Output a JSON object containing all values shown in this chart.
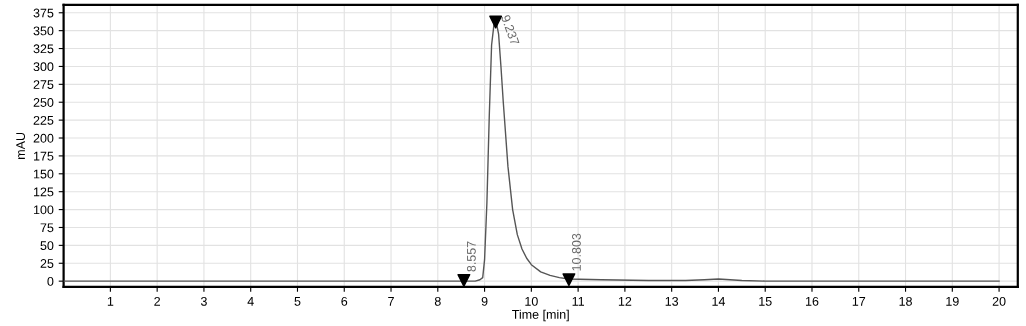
{
  "chart_data": {
    "type": "line",
    "xlabel": "Time [min]",
    "ylabel": "mAU",
    "xlim": [
      0,
      20.4
    ],
    "ylim": [
      -8,
      386
    ],
    "xticks": [
      1,
      2,
      3,
      4,
      5,
      6,
      7,
      8,
      9,
      10,
      11,
      12,
      13,
      14,
      15,
      16,
      17,
      18,
      19,
      20
    ],
    "yticks": [
      0,
      25,
      50,
      75,
      100,
      125,
      150,
      175,
      200,
      225,
      250,
      275,
      300,
      325,
      350,
      375
    ],
    "grid": true,
    "legend": false,
    "series": [
      {
        "color": "#555555",
        "marker": "none",
        "line_style": "solid",
        "x": [
          0,
          4,
          8.5,
          8.8,
          8.9,
          8.96,
          9.0,
          9.05,
          9.1,
          9.15,
          9.2,
          9.25,
          9.3,
          9.35,
          9.4,
          9.5,
          9.6,
          9.7,
          9.8,
          9.9,
          10.0,
          10.2,
          10.4,
          10.6,
          10.8,
          11.5,
          12.5,
          13.0,
          13.3,
          13.7,
          14.0,
          14.5,
          15,
          20
        ],
        "values": [
          0,
          0,
          0,
          0,
          2,
          5,
          30,
          110,
          230,
          330,
          358,
          362,
          345,
          300,
          250,
          160,
          100,
          65,
          45,
          32,
          23,
          13,
          8,
          5,
          3,
          2,
          1,
          1,
          1,
          2,
          3,
          1,
          0,
          0
        ]
      },
      {
        "type": "scatter",
        "color": "#000000",
        "marker": "triangle",
        "x": [
          8.557,
          9.237,
          10.803
        ],
        "values": [
          1,
          362,
          2
        ]
      }
    ],
    "annotations": [
      {
        "text": "8.557",
        "x": 8.557,
        "y": 1
      },
      {
        "text": "9.237",
        "x": 9.237,
        "y": 362
      },
      {
        "text": "10.803",
        "x": 10.803,
        "y": 2
      }
    ]
  }
}
